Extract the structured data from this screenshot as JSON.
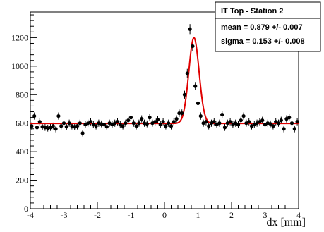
{
  "chart_data": {
    "type": "scatter",
    "xlabel": "dx [mm]",
    "ylabel": "",
    "xlim": [
      -4,
      4
    ],
    "ylim": [
      0,
      1380
    ],
    "x_ticks": [
      "-4",
      "-3",
      "-2",
      "-1",
      "0",
      "1",
      "2",
      "3",
      "4"
    ],
    "y_ticks": [
      "0",
      "200",
      "400",
      "600",
      "800",
      "1000",
      "1200"
    ],
    "grid": false,
    "stats_box": {
      "title": "IT Top - Station 2",
      "mean": "mean =  0.879 +/- 0.007",
      "sigma": "sigma =  0.153 +/- 0.008",
      "placement": "top-right"
    },
    "fit": {
      "type": "gaussian",
      "color": "#e00000",
      "baseline": 598,
      "amplitude": 602,
      "mean": 0.879,
      "sigma": 0.153
    },
    "series": [
      {
        "marker_color": "#000000",
        "x": [
          -3.96,
          -3.88,
          -3.8,
          -3.72,
          -3.64,
          -3.56,
          -3.48,
          -3.4,
          -3.32,
          -3.24,
          -3.16,
          -3.08,
          -3.0,
          -2.92,
          -2.84,
          -2.76,
          -2.68,
          -2.6,
          -2.52,
          -2.44,
          -2.36,
          -2.28,
          -2.2,
          -2.12,
          -2.04,
          -1.96,
          -1.88,
          -1.8,
          -1.72,
          -1.64,
          -1.56,
          -1.48,
          -1.4,
          -1.32,
          -1.24,
          -1.16,
          -1.08,
          -1.0,
          -0.92,
          -0.84,
          -0.76,
          -0.68,
          -0.6,
          -0.52,
          -0.44,
          -0.36,
          -0.28,
          -0.2,
          -0.12,
          -0.04,
          0.04,
          0.12,
          0.2,
          0.28,
          0.36,
          0.44,
          0.52,
          0.6,
          0.68,
          0.76,
          0.84,
          0.92,
          1.0,
          1.08,
          1.16,
          1.24,
          1.32,
          1.4,
          1.48,
          1.56,
          1.64,
          1.72,
          1.8,
          1.88,
          1.96,
          2.04,
          2.12,
          2.2,
          2.28,
          2.36,
          2.44,
          2.52,
          2.6,
          2.68,
          2.76,
          2.84,
          2.92,
          3.0,
          3.08,
          3.16,
          3.24,
          3.32,
          3.4,
          3.48,
          3.56,
          3.64,
          3.72,
          3.8,
          3.88,
          3.96
        ],
        "y": [
          580,
          650,
          570,
          610,
          575,
          570,
          565,
          570,
          580,
          560,
          650,
          580,
          600,
          575,
          600,
          580,
          575,
          580,
          600,
          530,
          590,
          600,
          610,
          590,
          580,
          600,
          595,
          590,
          575,
          600,
          590,
          600,
          610,
          590,
          580,
          600,
          620,
          640,
          600,
          580,
          600,
          630,
          600,
          595,
          640,
          600,
          610,
          625,
          590,
          610,
          580,
          600,
          580,
          610,
          630,
          670,
          670,
          800,
          950,
          1260,
          1140,
          860,
          740,
          650,
          600,
          610,
          580,
          600,
          610,
          590,
          600,
          660,
          570,
          600,
          610,
          590,
          600,
          590,
          620,
          650,
          600,
          610,
          580,
          590,
          600,
          610,
          620,
          590,
          600,
          595,
          580,
          610,
          600,
          620,
          560,
          630,
          640,
          600,
          560,
          610
        ],
        "err": [
          25,
          25,
          24,
          25,
          24,
          24,
          24,
          24,
          24,
          24,
          25,
          24,
          25,
          24,
          25,
          24,
          24,
          24,
          25,
          23,
          24,
          25,
          25,
          24,
          24,
          25,
          24,
          24,
          24,
          25,
          24,
          25,
          25,
          24,
          24,
          25,
          25,
          25,
          25,
          24,
          25,
          25,
          25,
          24,
          25,
          25,
          25,
          25,
          24,
          25,
          24,
          25,
          24,
          25,
          25,
          26,
          26,
          28,
          31,
          35,
          34,
          29,
          27,
          26,
          25,
          25,
          24,
          25,
          25,
          24,
          25,
          26,
          24,
          25,
          25,
          24,
          25,
          24,
          25,
          25,
          25,
          25,
          24,
          24,
          25,
          25,
          25,
          24,
          25,
          24,
          24,
          25,
          25,
          25,
          24,
          25,
          25,
          25,
          24,
          25
        ]
      }
    ]
  }
}
